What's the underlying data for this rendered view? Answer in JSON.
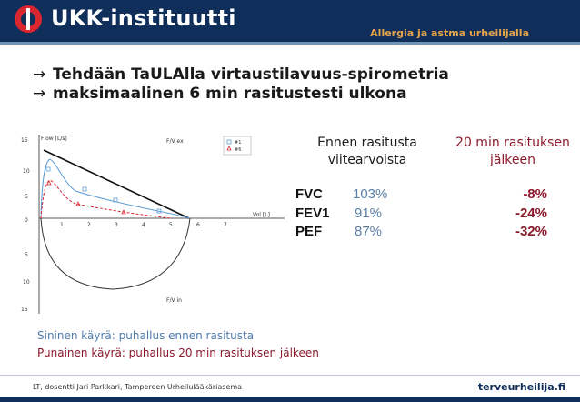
{
  "header": {
    "brand": "UKK-instituutti",
    "subtitle": "Allergia ja astma urheilijalla"
  },
  "bullets": [
    {
      "text": "Tehdään TaULAlla virtaustilavuus-spirometria"
    },
    {
      "text": "maksimaalinen 6 min rasitustesti ulkona"
    }
  ],
  "plot": {
    "ylabel": "Flow [L/s]",
    "xlabel": "Vol [L]",
    "fv_ex": "F/V ex",
    "fv_in": "F/V in",
    "legend": [
      "#1",
      "#6"
    ],
    "yticks": [
      "15",
      "10",
      "5",
      "0",
      "5",
      "10",
      "15"
    ],
    "xticks": [
      "1",
      "2",
      "3",
      "4",
      "5",
      "6",
      "7"
    ]
  },
  "table": {
    "col_before": [
      "Ennen rasitusta",
      "viitearvoista"
    ],
    "col_after": [
      "20 min rasituksen",
      "jälkeen"
    ],
    "rows": [
      {
        "label": "FVC",
        "before": "103%",
        "after": "-8%"
      },
      {
        "label": "FEV1",
        "before": "91%",
        "after": "-24%"
      },
      {
        "label": "PEF",
        "before": "87%",
        "after": "-32%"
      }
    ]
  },
  "notes": {
    "blue": "Sininen käyrä: puhallus ennen rasitusta",
    "red": "Punainen käyrä: puhallus 20 min rasituksen jälkeen"
  },
  "footer": {
    "left": "LT, dosentti Jari Parkkari, Tampereen Urheilulääkäriasema",
    "right": "terveurheilija.fi"
  },
  "colors": {
    "navy": "#0f2f5a",
    "accent": "#e8a44b",
    "blue": "#5b7fa8",
    "red": "#8b1a2b"
  }
}
